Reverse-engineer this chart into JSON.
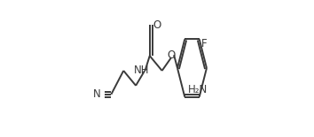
{
  "line_color": "#3a3a3a",
  "bg_color": "#ffffff",
  "font_size": 8.5,
  "line_width": 1.4,
  "atoms": {
    "N_nitrile": "N",
    "NH_label": "NH",
    "O_carbonyl": "O",
    "O_ether": "O",
    "NH2_label": "H₂N",
    "F_label": "F"
  }
}
